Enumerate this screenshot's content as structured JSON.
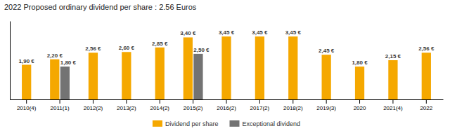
{
  "chart_data": {
    "type": "bar",
    "title": "2022 Proposed ordinary dividend per share : 2.56 Euros",
    "categories": [
      "2010(4)",
      "2011(1)",
      "2012(2)",
      "2013(2)",
      "2014(2)",
      "2015(2)",
      "2016(2)",
      "2017(2)",
      "2018(2)",
      "2019(3)",
      "2020",
      "2021(4)",
      "2022"
    ],
    "series": [
      {
        "name": "Dividend per share",
        "color": "#F5A800",
        "values": [
          1.9,
          2.2,
          2.56,
          2.6,
          2.85,
          3.4,
          3.45,
          3.45,
          3.45,
          2.45,
          1.8,
          2.15,
          2.56
        ],
        "value_labels": [
          "1,90 €",
          "2,20 €",
          "2,56 €",
          "2,60 €",
          "2,85 €",
          "3,40 €",
          "3,45 €",
          "3,45 €",
          "3,45 €",
          "2,45 €",
          "1,80 €",
          "2,15 €",
          "2,56 €"
        ]
      },
      {
        "name": "Exceptional dividend",
        "color": "#737373",
        "values": [
          0,
          1.8,
          0,
          0,
          0,
          2.5,
          0,
          0,
          0,
          0,
          0,
          0,
          0
        ],
        "value_labels": [
          null,
          "1,80 €",
          null,
          null,
          null,
          "2,50 €",
          null,
          null,
          null,
          null,
          null,
          null,
          null
        ]
      }
    ],
    "ylim": [
      0,
      4.3
    ],
    "tick_labels": "x",
    "grid": false,
    "legend": "bottom",
    "data_labels": true
  }
}
